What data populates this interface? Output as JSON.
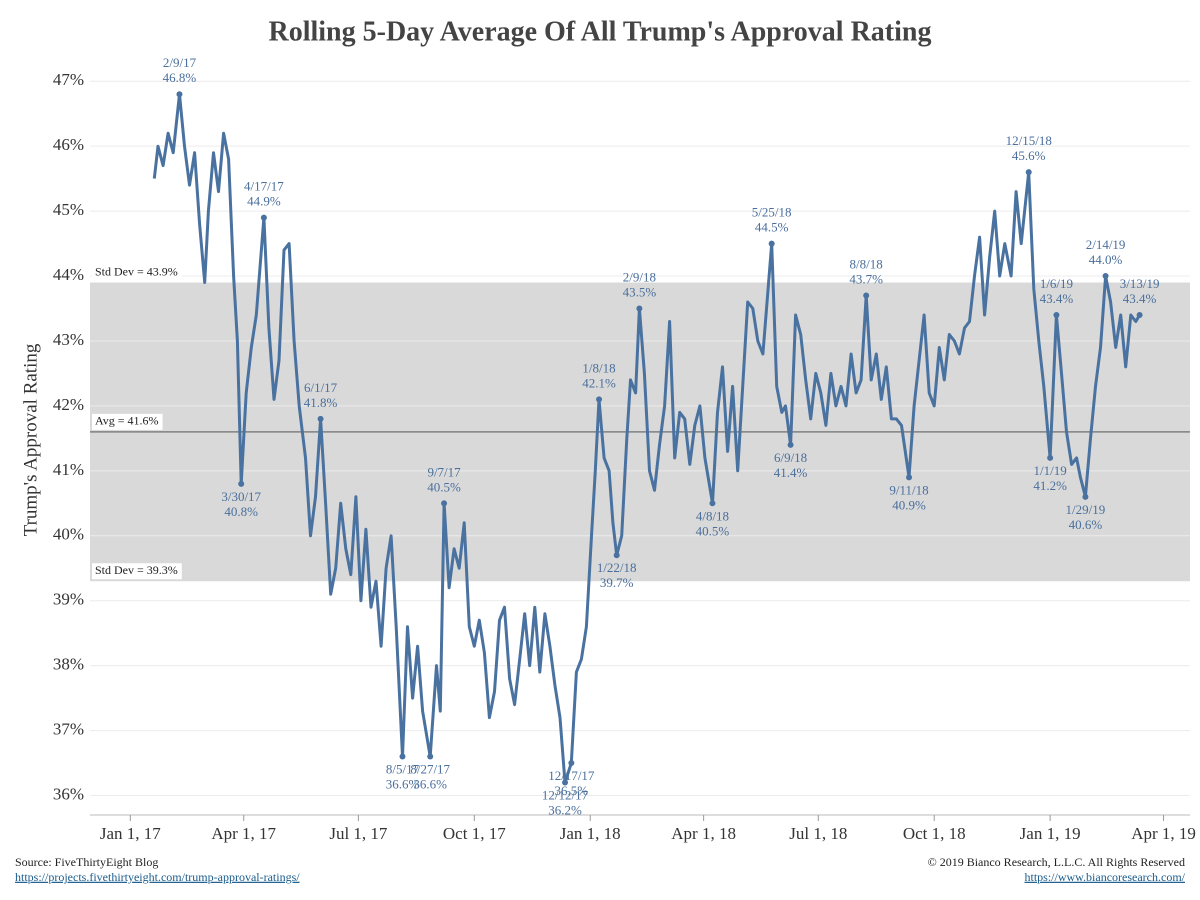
{
  "chart_data": {
    "type": "line",
    "title": "Rolling 5-Day Average Of All Trump's Approval Rating",
    "y_label": "Trump's Approval Rating",
    "xlim": [
      "2016-11-30",
      "2019-04-22"
    ],
    "xticks": [
      {
        "value": "2017-01-01",
        "label": "Jan 1, 17"
      },
      {
        "value": "2017-04-01",
        "label": "Apr 1, 17"
      },
      {
        "value": "2017-07-01",
        "label": "Jul 1, 17"
      },
      {
        "value": "2017-10-01",
        "label": "Oct 1, 17"
      },
      {
        "value": "2018-01-01",
        "label": "Jan 1, 18"
      },
      {
        "value": "2018-04-01",
        "label": "Apr 1, 18"
      },
      {
        "value": "2018-07-01",
        "label": "Jul 1, 18"
      },
      {
        "value": "2018-10-01",
        "label": "Oct 1, 18"
      },
      {
        "value": "2019-01-01",
        "label": "Jan 1, 19"
      },
      {
        "value": "2019-04-01",
        "label": "Apr 1, 19"
      }
    ],
    "ylim": [
      35.7,
      47.25
    ],
    "yticks": [
      {
        "value": 36,
        "label": "36%"
      },
      {
        "value": 37,
        "label": "37%"
      },
      {
        "value": 38,
        "label": "38%"
      },
      {
        "value": 39,
        "label": "39%"
      },
      {
        "value": 40,
        "label": "40%"
      },
      {
        "value": 41,
        "label": "41%"
      },
      {
        "value": 42,
        "label": "42%"
      },
      {
        "value": 43,
        "label": "43%"
      },
      {
        "value": 44,
        "label": "44%"
      },
      {
        "value": 45,
        "label": "45%"
      },
      {
        "value": 46,
        "label": "46%"
      },
      {
        "value": 47,
        "label": "47%"
      }
    ],
    "grid": true,
    "band": {
      "color": "#d9d9d9",
      "upper": {
        "value": 43.9,
        "label": "Std Dev = 43.9%"
      },
      "lower": {
        "value": 39.3,
        "label": "Std Dev = 39.3%"
      }
    },
    "average": {
      "value": 41.6,
      "label": "Avg = 41.6%",
      "color": "#808080"
    },
    "x": [
      "2017-01-20",
      "2017-01-23",
      "2017-01-27",
      "2017-01-31",
      "2017-02-04",
      "2017-02-09",
      "2017-02-13",
      "2017-02-17",
      "2017-02-21",
      "2017-02-25",
      "2017-03-01",
      "2017-03-04",
      "2017-03-08",
      "2017-03-12",
      "2017-03-16",
      "2017-03-20",
      "2017-03-24",
      "2017-03-27",
      "2017-03-30",
      "2017-04-03",
      "2017-04-07",
      "2017-04-11",
      "2017-04-17",
      "2017-04-21",
      "2017-04-25",
      "2017-04-29",
      "2017-05-03",
      "2017-05-07",
      "2017-05-11",
      "2017-05-15",
      "2017-05-20",
      "2017-05-24",
      "2017-05-28",
      "2017-06-01",
      "2017-06-05",
      "2017-06-09",
      "2017-06-13",
      "2017-06-17",
      "2017-06-21",
      "2017-06-25",
      "2017-06-29",
      "2017-07-03",
      "2017-07-07",
      "2017-07-11",
      "2017-07-15",
      "2017-07-19",
      "2017-07-23",
      "2017-07-27",
      "2017-07-31",
      "2017-08-05",
      "2017-08-09",
      "2017-08-13",
      "2017-08-17",
      "2017-08-21",
      "2017-08-27",
      "2017-09-01",
      "2017-09-04",
      "2017-09-07",
      "2017-09-11",
      "2017-09-15",
      "2017-09-19",
      "2017-09-23",
      "2017-09-27",
      "2017-10-01",
      "2017-10-05",
      "2017-10-09",
      "2017-10-13",
      "2017-10-17",
      "2017-10-21",
      "2017-10-25",
      "2017-10-29",
      "2017-11-02",
      "2017-11-06",
      "2017-11-10",
      "2017-11-14",
      "2017-11-18",
      "2017-11-22",
      "2017-11-26",
      "2017-11-30",
      "2017-12-04",
      "2017-12-08",
      "2017-12-12",
      "2017-12-17",
      "2017-12-21",
      "2017-12-25",
      "2017-12-29",
      "2018-01-02",
      "2018-01-05",
      "2018-01-08",
      "2018-01-12",
      "2018-01-16",
      "2018-01-19",
      "2018-01-22",
      "2018-01-26",
      "2018-01-30",
      "2018-02-02",
      "2018-02-06",
      "2018-02-09",
      "2018-02-13",
      "2018-02-17",
      "2018-02-21",
      "2018-02-25",
      "2018-03-01",
      "2018-03-05",
      "2018-03-09",
      "2018-03-13",
      "2018-03-17",
      "2018-03-21",
      "2018-03-25",
      "2018-03-29",
      "2018-04-02",
      "2018-04-08",
      "2018-04-12",
      "2018-04-16",
      "2018-04-20",
      "2018-04-24",
      "2018-04-28",
      "2018-05-02",
      "2018-05-06",
      "2018-05-10",
      "2018-05-14",
      "2018-05-18",
      "2018-05-25",
      "2018-05-29",
      "2018-06-02",
      "2018-06-05",
      "2018-06-09",
      "2018-06-13",
      "2018-06-17",
      "2018-06-21",
      "2018-06-25",
      "2018-06-29",
      "2018-07-03",
      "2018-07-07",
      "2018-07-11",
      "2018-07-15",
      "2018-07-19",
      "2018-07-23",
      "2018-07-27",
      "2018-07-31",
      "2018-08-04",
      "2018-08-08",
      "2018-08-12",
      "2018-08-16",
      "2018-08-20",
      "2018-08-24",
      "2018-08-28",
      "2018-09-01",
      "2018-09-05",
      "2018-09-11",
      "2018-09-15",
      "2018-09-19",
      "2018-09-23",
      "2018-09-27",
      "2018-10-01",
      "2018-10-05",
      "2018-10-09",
      "2018-10-13",
      "2018-10-17",
      "2018-10-21",
      "2018-10-25",
      "2018-10-29",
      "2018-11-02",
      "2018-11-06",
      "2018-11-10",
      "2018-11-14",
      "2018-11-18",
      "2018-11-22",
      "2018-11-26",
      "2018-12-01",
      "2018-12-05",
      "2018-12-09",
      "2018-12-15",
      "2018-12-19",
      "2018-12-23",
      "2018-12-27",
      "2019-01-01",
      "2019-01-06",
      "2019-01-10",
      "2019-01-14",
      "2019-01-18",
      "2019-01-22",
      "2019-01-25",
      "2019-01-29",
      "2019-02-02",
      "2019-02-06",
      "2019-02-10",
      "2019-02-14",
      "2019-02-18",
      "2019-02-22",
      "2019-02-26",
      "2019-03-02",
      "2019-03-06",
      "2019-03-10",
      "2019-03-13"
    ],
    "series": [
      {
        "name": "Rolling 5-Day Average",
        "color": "#4a72a0",
        "values": [
          45.5,
          46.0,
          45.7,
          46.2,
          45.9,
          46.8,
          46.0,
          45.4,
          45.9,
          44.8,
          43.9,
          45.0,
          45.9,
          45.3,
          46.2,
          45.8,
          44.0,
          43.0,
          40.8,
          42.2,
          42.9,
          43.4,
          44.9,
          43.2,
          42.1,
          42.7,
          44.4,
          44.5,
          43.0,
          42.0,
          41.2,
          40.0,
          40.6,
          41.8,
          40.5,
          39.1,
          39.5,
          40.5,
          39.8,
          39.4,
          40.6,
          39.0,
          40.1,
          38.9,
          39.3,
          38.3,
          39.5,
          40.0,
          38.6,
          36.6,
          38.6,
          37.5,
          38.3,
          37.3,
          36.6,
          38.0,
          37.3,
          40.5,
          39.2,
          39.8,
          39.5,
          40.2,
          38.6,
          38.3,
          38.7,
          38.2,
          37.2,
          37.6,
          38.7,
          38.9,
          37.8,
          37.4,
          38.1,
          38.8,
          38.0,
          38.9,
          37.9,
          38.8,
          38.3,
          37.7,
          37.2,
          36.2,
          36.5,
          37.9,
          38.1,
          38.6,
          40.0,
          41.0,
          42.1,
          41.2,
          41.0,
          40.2,
          39.7,
          40.0,
          41.5,
          42.4,
          42.2,
          43.5,
          42.5,
          41.0,
          40.7,
          41.4,
          42.0,
          43.3,
          41.2,
          41.9,
          41.8,
          41.1,
          41.7,
          42.0,
          41.2,
          40.5,
          41.9,
          42.6,
          41.3,
          42.3,
          41.0,
          42.3,
          43.6,
          43.5,
          43.0,
          42.8,
          44.5,
          42.3,
          41.9,
          42.0,
          41.4,
          43.4,
          43.1,
          42.4,
          41.8,
          42.5,
          42.2,
          41.7,
          42.5,
          42.0,
          42.3,
          42.0,
          42.8,
          42.2,
          42.4,
          43.7,
          42.4,
          42.8,
          42.1,
          42.6,
          41.8,
          41.8,
          41.7,
          40.9,
          42.0,
          42.7,
          43.4,
          42.2,
          42.0,
          42.9,
          42.4,
          43.1,
          43.0,
          42.8,
          43.2,
          43.3,
          44.0,
          44.6,
          43.4,
          44.3,
          45.0,
          44.0,
          44.5,
          44.0,
          45.3,
          44.5,
          45.6,
          43.8,
          43.0,
          42.3,
          41.2,
          43.4,
          42.5,
          41.6,
          41.1,
          41.2,
          40.9,
          40.6,
          41.5,
          42.3,
          42.9,
          44.0,
          43.6,
          42.9,
          43.4,
          42.6,
          43.4,
          43.3,
          43.4
        ]
      }
    ],
    "annotations": [
      {
        "x": "2017-02-09",
        "y": 46.8,
        "date_label": "2/9/17",
        "value_label": "46.8%"
      },
      {
        "x": "2017-03-30",
        "y": 40.8,
        "date_label": "3/30/17",
        "value_label": "40.8%"
      },
      {
        "x": "2017-04-17",
        "y": 44.9,
        "date_label": "4/17/17",
        "value_label": "44.9%"
      },
      {
        "x": "2017-06-01",
        "y": 41.8,
        "date_label": "6/1/17",
        "value_label": "41.8%"
      },
      {
        "x": "2017-08-05",
        "y": 36.6,
        "date_label": "8/5/17",
        "value_label": "36.6%"
      },
      {
        "x": "2017-08-27",
        "y": 36.6,
        "date_label": "8/27/17",
        "value_label": "36.6%"
      },
      {
        "x": "2017-09-07",
        "y": 40.5,
        "date_label": "9/7/17",
        "value_label": "40.5%"
      },
      {
        "x": "2017-12-12",
        "y": 36.2,
        "date_label": "12/12/17",
        "value_label": "36.2%"
      },
      {
        "x": "2017-12-17",
        "y": 36.5,
        "date_label": "12/17/17",
        "value_label": "36.5%"
      },
      {
        "x": "2018-01-08",
        "y": 42.1,
        "date_label": "1/8/18",
        "value_label": "42.1%"
      },
      {
        "x": "2018-01-22",
        "y": 39.7,
        "date_label": "1/22/18",
        "value_label": "39.7%"
      },
      {
        "x": "2018-02-09",
        "y": 43.5,
        "date_label": "2/9/18",
        "value_label": "43.5%"
      },
      {
        "x": "2018-04-08",
        "y": 40.5,
        "date_label": "4/8/18",
        "value_label": "40.5%"
      },
      {
        "x": "2018-05-25",
        "y": 44.5,
        "date_label": "5/25/18",
        "value_label": "44.5%"
      },
      {
        "x": "2018-06-09",
        "y": 41.4,
        "date_label": "6/9/18",
        "value_label": "41.4%"
      },
      {
        "x": "2018-08-08",
        "y": 43.7,
        "date_label": "8/8/18",
        "value_label": "43.7%"
      },
      {
        "x": "2018-09-11",
        "y": 40.9,
        "date_label": "9/11/18",
        "value_label": "40.9%"
      },
      {
        "x": "2018-12-15",
        "y": 45.6,
        "date_label": "12/15/18",
        "value_label": "45.6%"
      },
      {
        "x": "2019-01-01",
        "y": 41.2,
        "date_label": "1/1/19",
        "value_label": "41.2%"
      },
      {
        "x": "2019-01-06",
        "y": 43.4,
        "date_label": "1/6/19",
        "value_label": "43.4%"
      },
      {
        "x": "2019-01-29",
        "y": 40.6,
        "date_label": "1/29/19",
        "value_label": "40.6%"
      },
      {
        "x": "2019-02-14",
        "y": 44.0,
        "date_label": "2/14/19",
        "value_label": "44.0%"
      },
      {
        "x": "2019-03-13",
        "y": 43.4,
        "date_label": "3/13/19",
        "value_label": "43.4%"
      }
    ],
    "source": "Source: FiveThirtyEight Blog",
    "source_url": "https://projects.fivethirtyeight.com/trump-approval-ratings/",
    "copyright": "© 2019 Bianco Research, L.L.C. All Rights Reserved",
    "copyright_url": "https://www.biancoresearch.com/"
  }
}
